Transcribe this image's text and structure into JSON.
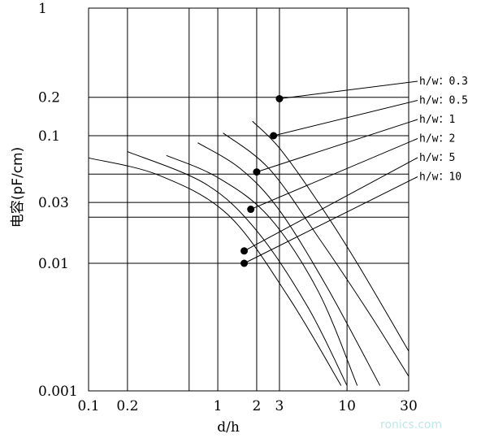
{
  "chart_data": {
    "type": "line",
    "ylabel": "电容(pF/cm)",
    "xlabel": "d/h",
    "x_scale": "log",
    "y_scale": "log",
    "xlim": [
      0.1,
      30
    ],
    "ylim": [
      0.001,
      1
    ],
    "x_ticks": [
      {
        "value": 0.1,
        "label": "0.1"
      },
      {
        "value": 0.2,
        "label": "0.2"
      },
      {
        "value": 1,
        "label": "1"
      },
      {
        "value": 2,
        "label": "2"
      },
      {
        "value": 3,
        "label": "3"
      },
      {
        "value": 10,
        "label": "10"
      },
      {
        "value": 30,
        "label": "30"
      }
    ],
    "y_ticks": [
      {
        "value": 1,
        "label": "1"
      },
      {
        "value": 0.2,
        "label": "0.2"
      },
      {
        "value": 0.1,
        "label": "0.1"
      },
      {
        "value": 0.03,
        "label": "0.03"
      },
      {
        "value": 0.01,
        "label": "0.01"
      },
      {
        "value": 0.001,
        "label": "0.001"
      }
    ],
    "x_gridlines": [
      0.2,
      0.6,
      1,
      2,
      3,
      10
    ],
    "y_gridlines": [
      0.2,
      0.1,
      0.05,
      0.03,
      0.023,
      0.01
    ],
    "grid": true,
    "series": [
      {
        "name": "h/w：0.3",
        "marker": {
          "x": 3.0,
          "y": 0.195
        },
        "points": [
          [
            1.85,
            0.13
          ],
          [
            3,
            0.08
          ],
          [
            6,
            0.03
          ],
          [
            12,
            0.01
          ],
          [
            30,
            0.00205
          ]
        ]
      },
      {
        "name": "h/w：0.5",
        "marker": {
          "x": 2.7,
          "y": 0.1
        },
        "points": [
          [
            1.1,
            0.105
          ],
          [
            2.5,
            0.055
          ],
          [
            6,
            0.016
          ],
          [
            15,
            0.004
          ],
          [
            30,
            0.0013
          ]
        ]
      },
      {
        "name": "h/w：1",
        "marker": {
          "x": 2.0,
          "y": 0.052
        },
        "points": [
          [
            0.7,
            0.088
          ],
          [
            1.5,
            0.055
          ],
          [
            3,
            0.026
          ],
          [
            7,
            0.0065
          ],
          [
            18,
            0.0011
          ]
        ]
      },
      {
        "name": "h/w：2",
        "marker": {
          "x": 1.8,
          "y": 0.0265
        },
        "points": [
          [
            0.4,
            0.07
          ],
          [
            1,
            0.047
          ],
          [
            2.5,
            0.023
          ],
          [
            6,
            0.006
          ],
          [
            12,
            0.0011
          ]
        ]
      },
      {
        "name": "h/w：5",
        "marker": {
          "x": 1.6,
          "y": 0.0125
        },
        "points": [
          [
            0.2,
            0.075
          ],
          [
            0.8,
            0.042
          ],
          [
            2,
            0.018
          ],
          [
            5,
            0.0045
          ],
          [
            10,
            0.0011
          ]
        ]
      },
      {
        "name": "h/w：10",
        "marker": {
          "x": 1.6,
          "y": 0.01
        },
        "points": [
          [
            0.1,
            0.067
          ],
          [
            0.35,
            0.049
          ],
          [
            1.2,
            0.024
          ],
          [
            3.5,
            0.0055
          ],
          [
            9,
            0.0011
          ]
        ]
      }
    ]
  },
  "watermark": "ronics.com"
}
